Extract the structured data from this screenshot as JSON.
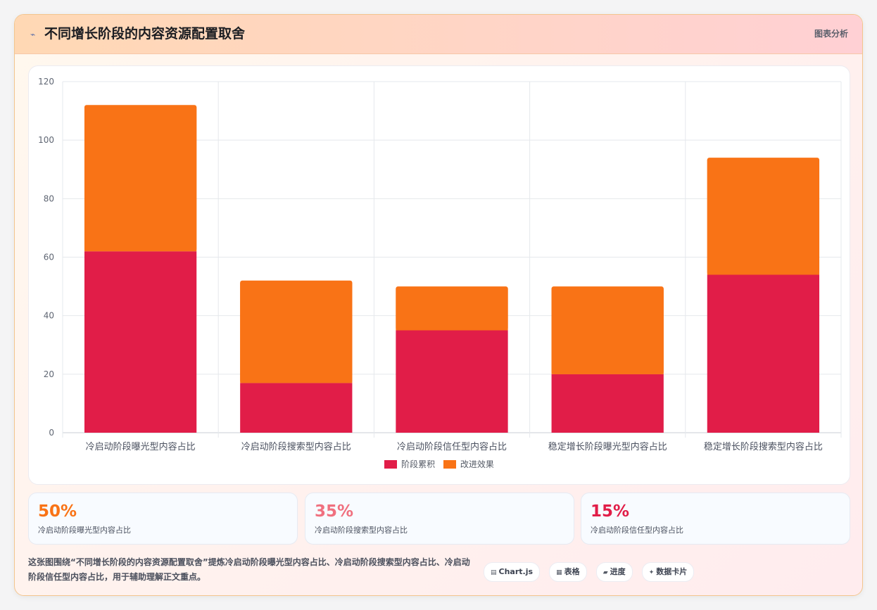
{
  "header": {
    "icon": "chart-line-icon",
    "title": "不同增长阶段的内容资源配置取舍",
    "action_label": "图表分析"
  },
  "colors": {
    "series_a": "#e11d48",
    "series_b": "#f97316",
    "stat_1": "#f97316",
    "stat_2": "#f0707f",
    "stat_3": "#e11d48"
  },
  "chart_data": {
    "type": "bar",
    "stacked": true,
    "categories": [
      "冷启动阶段曝光型内容占比",
      "冷启动阶段搜索型内容占比",
      "冷启动阶段信任型内容占比",
      "稳定增长阶段曝光型内容占比",
      "稳定增长阶段搜索型内容占比"
    ],
    "series": [
      {
        "name": "阶段累积",
        "values": [
          62,
          17,
          35,
          20,
          54
        ],
        "color": "#e11d48"
      },
      {
        "name": "改进效果",
        "values": [
          50,
          35,
          15,
          30,
          40
        ],
        "color": "#f97316"
      }
    ],
    "ylim": [
      0,
      120
    ],
    "yticks": [
      0,
      20,
      40,
      60,
      80,
      100,
      120
    ],
    "grid": true,
    "legend_position": "bottom"
  },
  "stats": [
    {
      "value": "50%",
      "label": "冷启动阶段曝光型内容占比"
    },
    {
      "value": "35%",
      "label": "冷启动阶段搜索型内容占比"
    },
    {
      "value": "15%",
      "label": "冷启动阶段信任型内容占比"
    }
  ],
  "description": "这张图围绕“不同增长阶段的内容资源配置取舍”提炼冷启动阶段曝光型内容占比、冷启动阶段搜索型内容占比、冷启动阶段信任型内容占比，用于辅助理解正文重点。",
  "tags": [
    {
      "icon": "▤",
      "icon_name": "chart-icon",
      "label": "Chart.js"
    },
    {
      "icon": "▦",
      "icon_name": "table-icon",
      "label": "表格"
    },
    {
      "icon": "▰",
      "icon_name": "progress-icon",
      "label": "进度"
    },
    {
      "icon": "✦",
      "icon_name": "sparkle-icon",
      "label": "数据卡片"
    }
  ]
}
